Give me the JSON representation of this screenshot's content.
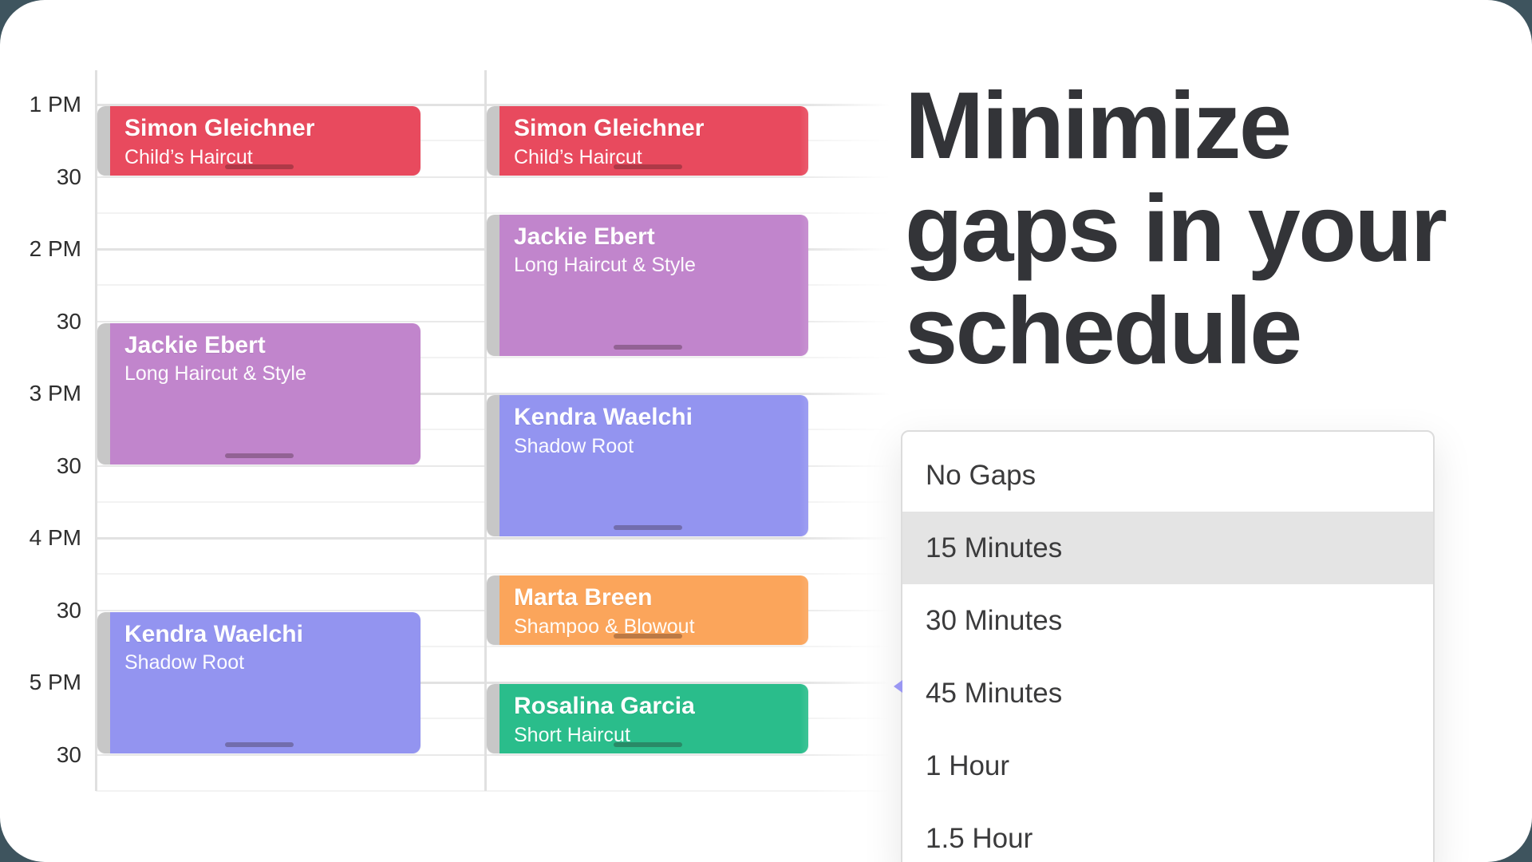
{
  "page": {
    "outside_color": "#3e545e"
  },
  "headline": {
    "lines": [
      "Minimize",
      "gaps in your",
      "schedule"
    ],
    "color": "#333438"
  },
  "calendar": {
    "time_labels": [
      {
        "text": "1 PM",
        "minutes": 0
      },
      {
        "text": "30",
        "minutes": 30
      },
      {
        "text": "2 PM",
        "minutes": 60
      },
      {
        "text": "30",
        "minutes": 90
      },
      {
        "text": "3 PM",
        "minutes": 120
      },
      {
        "text": "30",
        "minutes": 150
      },
      {
        "text": "4 PM",
        "minutes": 180
      },
      {
        "text": "30",
        "minutes": 210
      },
      {
        "text": "5 PM",
        "minutes": 240
      },
      {
        "text": "30",
        "minutes": 270
      }
    ],
    "event_colors": {
      "red": "#e84a5e",
      "purple": "#c185cc",
      "periwinkle": "#9394f0",
      "orange": "#fba55b",
      "green": "#2abd8b"
    },
    "columns": [
      {
        "id": "with-gaps",
        "events": [
          {
            "name": "Simon Gleichner",
            "service": "Child’s Haircut",
            "color": "red",
            "start_minutes": 0,
            "duration_minutes": 30
          },
          {
            "name": "Jackie Ebert",
            "service": "Long Haircut & Style",
            "color": "purple",
            "start_minutes": 90,
            "duration_minutes": 60
          },
          {
            "name": "Kendra Waelchi",
            "service": "Shadow Root",
            "color": "periwinkle",
            "start_minutes": 210,
            "duration_minutes": 60
          }
        ]
      },
      {
        "id": "gaps-minimized",
        "events": [
          {
            "name": "Simon Gleichner",
            "service": "Child’s Haircut",
            "color": "red",
            "start_minutes": 0,
            "duration_minutes": 30
          },
          {
            "name": "Jackie Ebert",
            "service": "Long Haircut & Style",
            "color": "purple",
            "start_minutes": 45,
            "duration_minutes": 60
          },
          {
            "name": "Kendra Waelchi",
            "service": "Shadow Root",
            "color": "periwinkle",
            "start_minutes": 120,
            "duration_minutes": 60
          },
          {
            "name": "Marta Breen",
            "service": "Shampoo & Blowout",
            "color": "orange",
            "start_minutes": 195,
            "duration_minutes": 30
          },
          {
            "name": "Rosalina Garcia",
            "service": "Short Haircut",
            "color": "green",
            "start_minutes": 240,
            "duration_minutes": 30
          }
        ]
      }
    ]
  },
  "dropdown": {
    "items": [
      {
        "label": "No Gaps",
        "selected": false
      },
      {
        "label": "15 Minutes",
        "selected": true
      },
      {
        "label": "30 Minutes",
        "selected": false
      },
      {
        "label": "45 Minutes",
        "selected": false
      },
      {
        "label": "1 Hour",
        "selected": false
      },
      {
        "label": "1.5 Hour",
        "selected": false
      }
    ],
    "selected_bg": "#e4e4e4",
    "caret_color": "#9a97f3"
  }
}
